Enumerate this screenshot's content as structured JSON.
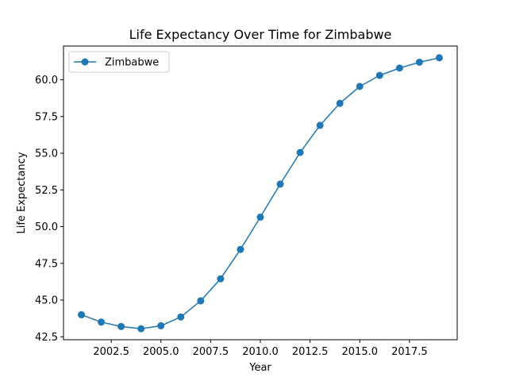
{
  "chart_data": {
    "type": "line",
    "title": "Life Expectancy Over Time for Zimbabwe",
    "xlabel": "Year",
    "ylabel": "Life Expectancy",
    "xlim": [
      2000.1,
      2019.9
    ],
    "ylim": [
      42.3,
      62.3
    ],
    "x_ticks": [
      2002.5,
      2005.0,
      2007.5,
      2010.0,
      2012.5,
      2015.0,
      2017.5
    ],
    "y_ticks": [
      42.5,
      45.0,
      47.5,
      50.0,
      52.5,
      55.0,
      57.5,
      60.0
    ],
    "legend_position": "upper-left",
    "grid": false,
    "series": [
      {
        "name": "Zimbabwe",
        "color": "#1f77b4",
        "marker": "circle",
        "x": [
          2001,
          2002,
          2003,
          2004,
          2005,
          2006,
          2007,
          2008,
          2009,
          2010,
          2011,
          2012,
          2013,
          2014,
          2015,
          2016,
          2017,
          2018,
          2019
        ],
        "y": [
          44.0,
          43.5,
          43.2,
          43.05,
          43.25,
          43.85,
          44.95,
          46.45,
          48.45,
          50.65,
          52.9,
          55.05,
          56.9,
          58.4,
          59.55,
          60.3,
          60.8,
          61.2,
          61.5
        ]
      }
    ]
  }
}
